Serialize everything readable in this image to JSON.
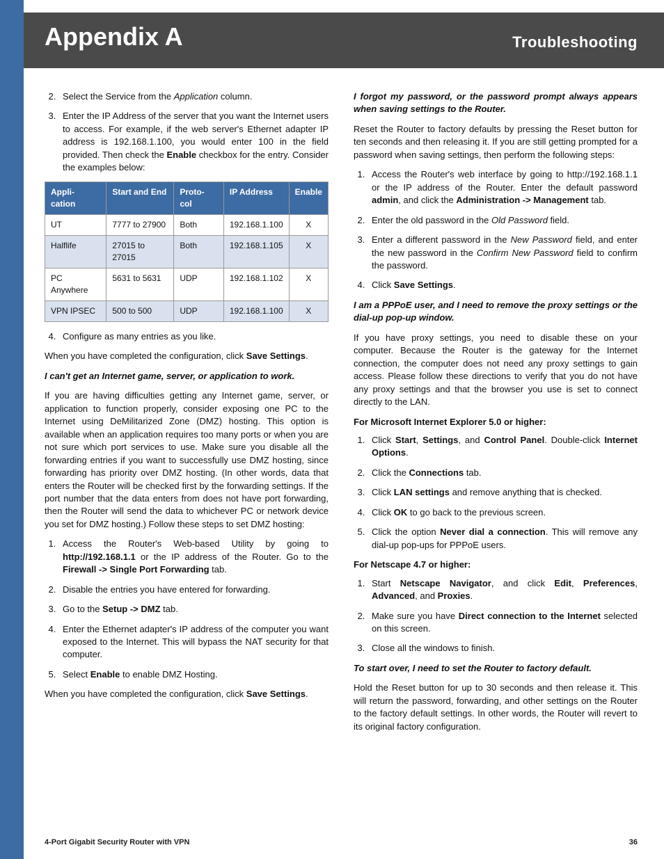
{
  "header": {
    "title": "Appendix A",
    "section": "Troubleshooting"
  },
  "colors": {
    "sidebar": "#3d6ba3",
    "header_bg": "#4a4a4a",
    "table_header_bg": "#3d6ba3",
    "table_alt_row": "#d9e1ee",
    "table_border": "#999999"
  },
  "left": {
    "list1": {
      "start": 2,
      "items": [
        {
          "pre": "Select the Service from the ",
          "it": "Application",
          "post": " column."
        },
        {
          "text": "Enter the IP Address of the server that you want the Internet users to access. For example, if the web server's Ethernet adapter IP address is 192.168.1.100, you would enter 100 in the field provided. Then check the ",
          "bold": "Enable",
          "post": " checkbox for the entry. Consider the examples below:"
        }
      ]
    },
    "table": {
      "headers": [
        "Appli-\ncation",
        "Start and End",
        "Proto-\ncol",
        "IP Address",
        "Enable"
      ],
      "rows": [
        {
          "cells": [
            "UT",
            "7777 to 27900",
            "Both",
            "192.168.1.100",
            "X"
          ],
          "alt": false
        },
        {
          "cells": [
            "Halflife",
            "27015 to 27015",
            "Both",
            "192.168.1.105",
            "X"
          ],
          "alt": true
        },
        {
          "cells": [
            "PC Anywhere",
            "5631 to 5631",
            "UDP",
            "192.168.1.102",
            "X"
          ],
          "alt": false
        },
        {
          "cells": [
            "VPN IPSEC",
            "500 to 500",
            "UDP",
            "192.168.1.100",
            "X"
          ],
          "alt": true
        }
      ]
    },
    "list1b_item": "Configure as many entries as you like.",
    "p_save1_pre": "When you have completed the configuration, click ",
    "p_save1_bold": "Save Settings",
    "sub1": "I can't get an Internet game, server, or application to work.",
    "p_dmz": "If you are having difficulties getting any Internet game, server, or application to function properly, consider exposing one PC to the Internet using DeMilitarized Zone (DMZ) hosting. This option is available when an application requires too many ports or when you are not sure which port services to use. Make sure you disable all the forwarding entries if you want to successfully use DMZ hosting, since forwarding has priority over DMZ hosting. (In other words, data that enters the Router will be checked first by the forwarding settings. If the port number that the data enters from does not have port forwarding, then the Router will send the data to whichever PC or network device you set for DMZ hosting.) Follow these steps to set DMZ hosting:",
    "list2": [
      {
        "pre": "Access the Router's Web-based Utility by going to ",
        "b1": "http://192.168.1.1",
        "mid": " or the IP address of the Router. Go to the ",
        "b2": "Firewall -> Single Port Forwarding",
        "post": " tab."
      },
      {
        "text": "Disable the entries you have entered for forwarding."
      },
      {
        "pre": "Go to the ",
        "b1": "Setup -> DMZ",
        "post": " tab."
      },
      {
        "text": "Enter the Ethernet adapter's IP address of the computer you want exposed to the Internet. This will bypass the NAT security for that computer."
      },
      {
        "pre": "Select ",
        "b1": "Enable",
        "post": " to enable DMZ Hosting."
      }
    ],
    "p_save2_pre": "When you have completed the configuration, click ",
    "p_save2_bold": "Save Settings"
  },
  "right": {
    "sub1": "I forgot my password, or the password prompt always appears when saving settings to the Router.",
    "p_reset": "Reset the Router to factory defaults by pressing the Reset button for ten seconds and then releasing it. If you are still getting prompted for a password when saving settings, then perform the following steps:",
    "list1": [
      {
        "pre": "Access the Router's web interface by going to http://192.168.1.1 or the IP address of the Router. Enter the default password ",
        "b1": "admin",
        "mid": ", and click the ",
        "b2": "Administration -> Management",
        "post": " tab."
      },
      {
        "pre": "Enter the old password in the ",
        "it": "Old Password",
        "post": " field."
      },
      {
        "pre": "Enter a different password in the ",
        "it": "New Password",
        "mid": " field, and enter the new password in the ",
        "it2": "Confirm New Password",
        "post": " field to confirm the password."
      },
      {
        "pre": "Click ",
        "b1": "Save Settings",
        "post": "."
      }
    ],
    "sub2": "I am a PPPoE user, and I need to remove the proxy settings or the dial-up pop-up window.",
    "p_pppoe": "If you have proxy settings, you need to disable these on your computer. Because the Router is the gateway for the Internet connection, the computer does not need any proxy settings to gain access. Please follow these directions to verify that you do not have any proxy settings and that the browser you use is set to connect directly to the LAN.",
    "bold_ie": "For Microsoft Internet Explorer 5.0 or higher:",
    "list_ie": [
      {
        "pre": "Click ",
        "b1": "Start",
        "c1": ", ",
        "b2": "Settings",
        "c2": ", and ",
        "b3": "Control Panel",
        "c3": ". Double-click ",
        "b4": "Internet Options",
        "post": "."
      },
      {
        "pre": "Click the ",
        "b1": "Connections",
        "post": " tab."
      },
      {
        "pre": "Click ",
        "b1": "LAN settings",
        "post": " and remove anything that is checked."
      },
      {
        "pre": "Click ",
        "b1": "OK",
        "post": " to go back to the previous screen."
      },
      {
        "pre": "Click the option ",
        "b1": "Never dial a connection",
        "post": ". This will remove any dial-up pop-ups for PPPoE users."
      }
    ],
    "bold_ns": "For Netscape 4.7 or higher:",
    "list_ns": [
      {
        "pre": "Start ",
        "b1": "Netscape Navigator",
        "c1": ", and click ",
        "b2": "Edit",
        "c2": ", ",
        "b3": "Preferences",
        "c3": ", ",
        "b4": "Advanced",
        "c4": ", and ",
        "b5": "Proxies",
        "post": "."
      },
      {
        "pre": "Make sure you have ",
        "b1": "Direct connection to the Internet",
        "post": " selected on this screen."
      },
      {
        "text": "Close all the windows to finish."
      }
    ],
    "sub3": "To start over, I need to set the Router to factory default.",
    "p_factory": "Hold the Reset button for up to 30 seconds and then release it. This will return the password, forwarding, and other settings on the Router to the factory default settings. In other words, the Router will revert to its original factory configuration."
  },
  "footer": {
    "product": "4-Port Gigabit Security Router with VPN",
    "page": "36"
  }
}
